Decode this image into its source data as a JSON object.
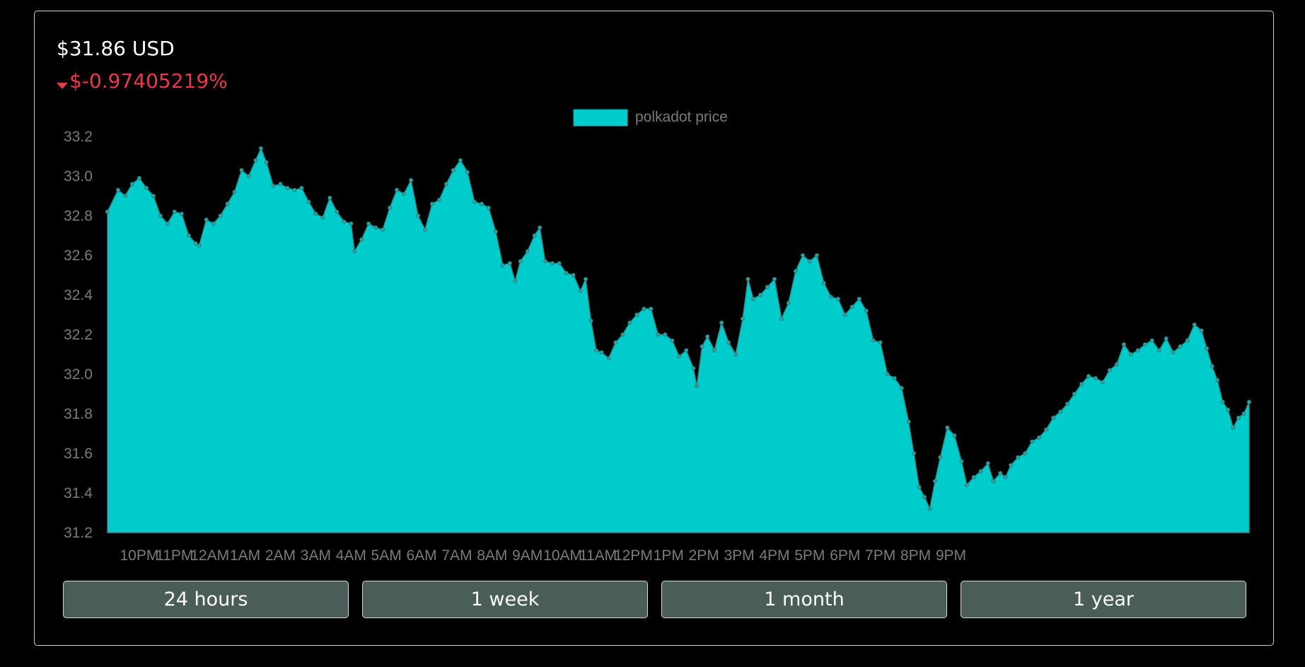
{
  "header": {
    "price": "$31.86 USD",
    "change": "$-0.97405219%",
    "change_icon": "caret-down-icon",
    "change_color": "#e83a4c"
  },
  "range_buttons": [
    {
      "label": "24 hours"
    },
    {
      "label": "1 week"
    },
    {
      "label": "1 month"
    },
    {
      "label": "1 year"
    }
  ],
  "chart_data": {
    "type": "area",
    "series": [
      {
        "name": "polkadot price",
        "color": "#00cccc"
      }
    ],
    "legend_position": "top-center",
    "x_tick_labels": [
      "10PM",
      "11PM",
      "12AM",
      "1AM",
      "2AM",
      "3AM",
      "4AM",
      "5AM",
      "6AM",
      "7AM",
      "8AM",
      "9AM",
      "10AM",
      "11AM",
      "12PM",
      "1PM",
      "2PM",
      "3PM",
      "4PM",
      "5PM",
      "6PM",
      "7PM",
      "8PM",
      "9PM"
    ],
    "y_ticks": [
      "33.2",
      "33.0",
      "32.8",
      "32.6",
      "32.4",
      "32.2",
      "32.0",
      "31.8",
      "31.6",
      "31.4",
      "31.2"
    ],
    "ylim": [
      31.2,
      33.2
    ],
    "grid": false,
    "hours_span": [
      0,
      24
    ],
    "points": [
      [
        0.0,
        32.82
      ],
      [
        0.3,
        32.93
      ],
      [
        0.5,
        32.9
      ],
      [
        0.7,
        32.96
      ],
      [
        0.9,
        32.99
      ],
      [
        1.1,
        32.94
      ],
      [
        1.3,
        32.9
      ],
      [
        1.5,
        32.8
      ],
      [
        1.7,
        32.76
      ],
      [
        1.9,
        32.82
      ],
      [
        2.1,
        32.81
      ],
      [
        2.3,
        32.7
      ],
      [
        2.5,
        32.66
      ],
      [
        2.6,
        32.65
      ],
      [
        2.8,
        32.78
      ],
      [
        3.0,
        32.76
      ],
      [
        3.2,
        32.8
      ],
      [
        3.4,
        32.86
      ],
      [
        3.6,
        32.92
      ],
      [
        3.8,
        33.03
      ],
      [
        4.0,
        33.0
      ],
      [
        4.2,
        33.08
      ],
      [
        4.35,
        33.14
      ],
      [
        4.5,
        33.07
      ],
      [
        4.7,
        32.95
      ],
      [
        4.9,
        32.96
      ],
      [
        5.1,
        32.94
      ],
      [
        5.3,
        32.93
      ],
      [
        5.5,
        32.94
      ],
      [
        5.7,
        32.87
      ],
      [
        5.9,
        32.81
      ],
      [
        6.1,
        32.79
      ],
      [
        6.3,
        32.89
      ],
      [
        6.5,
        32.82
      ],
      [
        6.7,
        32.77
      ],
      [
        6.9,
        32.76
      ],
      [
        7.0,
        32.62
      ],
      [
        7.2,
        32.68
      ],
      [
        7.4,
        32.76
      ],
      [
        7.6,
        32.74
      ],
      [
        7.8,
        32.73
      ],
      [
        8.0,
        32.84
      ],
      [
        8.2,
        32.93
      ],
      [
        8.4,
        32.91
      ],
      [
        8.6,
        32.98
      ],
      [
        8.8,
        32.8
      ],
      [
        9.0,
        32.73
      ],
      [
        9.2,
        32.86
      ],
      [
        9.4,
        32.88
      ],
      [
        9.6,
        32.96
      ],
      [
        9.8,
        33.03
      ],
      [
        10.0,
        33.08
      ],
      [
        10.2,
        33.02
      ],
      [
        10.4,
        32.87
      ],
      [
        10.6,
        32.86
      ],
      [
        10.8,
        32.84
      ],
      [
        11.0,
        32.72
      ],
      [
        11.2,
        32.55
      ],
      [
        11.4,
        32.56
      ],
      [
        11.55,
        32.47
      ],
      [
        11.7,
        32.57
      ],
      [
        11.9,
        32.62
      ],
      [
        12.1,
        32.7
      ],
      [
        12.25,
        32.74
      ],
      [
        12.4,
        32.57
      ],
      [
        12.6,
        32.56
      ],
      [
        12.8,
        32.56
      ],
      [
        13.0,
        32.51
      ],
      [
        13.2,
        32.5
      ],
      [
        13.4,
        32.42
      ],
      [
        13.55,
        32.48
      ],
      [
        13.7,
        32.27
      ],
      [
        13.85,
        32.12
      ],
      [
        14.0,
        32.11
      ],
      [
        14.2,
        32.08
      ],
      [
        14.4,
        32.16
      ],
      [
        14.6,
        32.2
      ],
      [
        14.8,
        32.26
      ],
      [
        15.0,
        32.3
      ],
      [
        15.2,
        32.33
      ],
      [
        15.4,
        32.33
      ],
      [
        15.6,
        32.2
      ],
      [
        15.8,
        32.2
      ],
      [
        16.0,
        32.17
      ],
      [
        16.2,
        32.09
      ],
      [
        16.4,
        32.12
      ],
      [
        16.6,
        32.03
      ],
      [
        16.7,
        31.94
      ],
      [
        16.85,
        32.14
      ],
      [
        17.0,
        32.19
      ],
      [
        17.2,
        32.12
      ],
      [
        17.4,
        32.26
      ],
      [
        17.6,
        32.16
      ],
      [
        17.8,
        32.1
      ],
      [
        18.0,
        32.28
      ],
      [
        18.15,
        32.48
      ],
      [
        18.3,
        32.38
      ],
      [
        18.5,
        32.4
      ],
      [
        18.7,
        32.44
      ],
      [
        18.9,
        32.48
      ],
      [
        19.1,
        32.28
      ],
      [
        19.3,
        32.36
      ],
      [
        19.5,
        32.52
      ],
      [
        19.7,
        32.6
      ],
      [
        19.9,
        32.57
      ],
      [
        20.1,
        32.6
      ],
      [
        20.3,
        32.46
      ],
      [
        20.5,
        32.39
      ],
      [
        20.7,
        32.38
      ],
      [
        20.9,
        32.3
      ],
      [
        21.1,
        32.34
      ],
      [
        21.3,
        32.38
      ],
      [
        21.5,
        32.32
      ],
      [
        21.7,
        32.17
      ],
      [
        21.9,
        32.16
      ],
      [
        22.1,
        32.0
      ],
      [
        22.3,
        31.98
      ],
      [
        22.5,
        31.93
      ],
      [
        22.7,
        31.76
      ],
      [
        22.85,
        31.6
      ],
      [
        23.0,
        31.43
      ],
      [
        23.15,
        31.38
      ],
      [
        23.3,
        31.32
      ],
      [
        23.45,
        31.46
      ],
      [
        23.6,
        31.58
      ],
      [
        23.8,
        31.73
      ],
      [
        24.0,
        31.69
      ],
      [
        24.2,
        31.56
      ],
      [
        24.35,
        31.44
      ],
      [
        24.55,
        31.48
      ],
      [
        24.75,
        31.51
      ],
      [
        24.95,
        31.55
      ],
      [
        25.1,
        31.46
      ],
      [
        25.3,
        31.5
      ],
      [
        25.45,
        31.48
      ],
      [
        25.6,
        31.54
      ],
      [
        25.8,
        31.58
      ],
      [
        26.0,
        31.6
      ],
      [
        26.2,
        31.66
      ],
      [
        26.4,
        31.68
      ],
      [
        26.6,
        31.72
      ],
      [
        26.8,
        31.78
      ],
      [
        27.0,
        31.81
      ],
      [
        27.2,
        31.85
      ],
      [
        27.4,
        31.9
      ],
      [
        27.6,
        31.95
      ],
      [
        27.8,
        31.99
      ],
      [
        28.0,
        31.98
      ],
      [
        28.2,
        31.96
      ],
      [
        28.4,
        32.02
      ],
      [
        28.6,
        32.05
      ],
      [
        28.8,
        32.15
      ],
      [
        29.0,
        32.1
      ],
      [
        29.2,
        32.12
      ],
      [
        29.4,
        32.15
      ],
      [
        29.6,
        32.17
      ],
      [
        29.8,
        32.12
      ],
      [
        30.0,
        32.18
      ],
      [
        30.2,
        32.11
      ],
      [
        30.4,
        32.14
      ],
      [
        30.6,
        32.17
      ],
      [
        30.8,
        32.25
      ],
      [
        31.0,
        32.22
      ],
      [
        31.15,
        32.13
      ],
      [
        31.3,
        32.04
      ],
      [
        31.45,
        31.97
      ],
      [
        31.6,
        31.86
      ],
      [
        31.75,
        31.82
      ],
      [
        31.9,
        31.73
      ],
      [
        32.05,
        31.78
      ],
      [
        32.2,
        31.8
      ],
      [
        32.35,
        31.86
      ]
    ]
  }
}
